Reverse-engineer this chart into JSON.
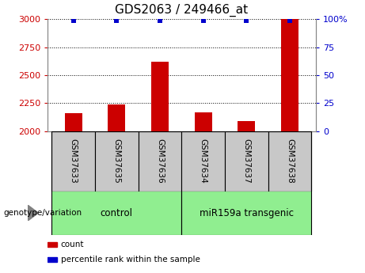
{
  "title": "GDS2063 / 249466_at",
  "samples": [
    "GSM37633",
    "GSM37635",
    "GSM37636",
    "GSM37634",
    "GSM37637",
    "GSM37638"
  ],
  "counts": [
    2160,
    2240,
    2620,
    2170,
    2090,
    3000
  ],
  "percentile_ranks": [
    99,
    99,
    99,
    99,
    99,
    99
  ],
  "baseline": 2000,
  "left_ylim": [
    2000,
    3000
  ],
  "right_ylim": [
    0,
    100
  ],
  "left_yticks": [
    2000,
    2250,
    2500,
    2750,
    3000
  ],
  "right_yticks": [
    0,
    25,
    50,
    75,
    100
  ],
  "right_yticklabels": [
    "0",
    "25",
    "50",
    "75",
    "100%"
  ],
  "bar_color": "#cc0000",
  "dot_color": "#0000cc",
  "groups": [
    {
      "label": "control",
      "start": 0,
      "end": 3,
      "color": "#90ee90"
    },
    {
      "label": "miR159a transgenic",
      "start": 3,
      "end": 6,
      "color": "#90ee90"
    }
  ],
  "sample_box_color": "#c8c8c8",
  "xlabel": "genotype/variation",
  "legend_items": [
    {
      "label": "count",
      "color": "#cc0000"
    },
    {
      "label": "percentile rank within the sample",
      "color": "#0000cc"
    }
  ],
  "title_color": "#000000",
  "left_axis_color": "#cc0000",
  "right_axis_color": "#0000cc",
  "gridline_style": "dotted",
  "gridline_color": "#000000",
  "bar_width": 0.4
}
